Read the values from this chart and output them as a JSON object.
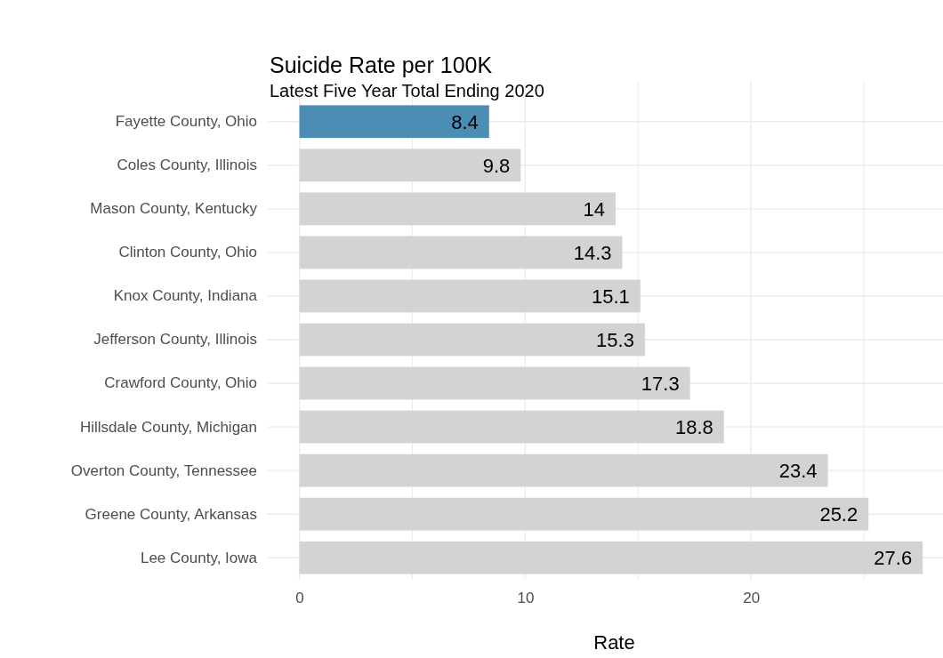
{
  "chart_data": {
    "type": "bar",
    "orientation": "horizontal",
    "title": "Suicide Rate per 100K",
    "subtitle": "Latest Five Year Total Ending 2020",
    "xlabel": "Rate",
    "categories": [
      "Fayette County, Ohio",
      "Coles County, Illinois",
      "Mason County, Kentucky",
      "Clinton County, Ohio",
      "Knox County, Indiana",
      "Jefferson County, Illinois",
      "Crawford County, Ohio",
      "Hillsdale County, Michigan",
      "Overton County, Tennessee",
      "Greene County, Arkansas",
      "Lee County, Iowa"
    ],
    "values": [
      8.4,
      9.8,
      14,
      14.3,
      15.1,
      15.3,
      17.3,
      18.8,
      23.4,
      25.2,
      27.6
    ],
    "colors": [
      "#4b8db3",
      "#d3d3d3",
      "#d3d3d3",
      "#d3d3d3",
      "#d3d3d3",
      "#d3d3d3",
      "#d3d3d3",
      "#d3d3d3",
      "#d3d3d3",
      "#d3d3d3",
      "#d3d3d3"
    ],
    "xlim": [
      -1.4,
      28.5
    ],
    "xticks": [
      0,
      {
        "value": 5,
        "label": null
      },
      10,
      {
        "value": 15,
        "label": null
      },
      20,
      {
        "value": 25,
        "label": null
      }
    ],
    "grid": true,
    "data_labels": true
  }
}
